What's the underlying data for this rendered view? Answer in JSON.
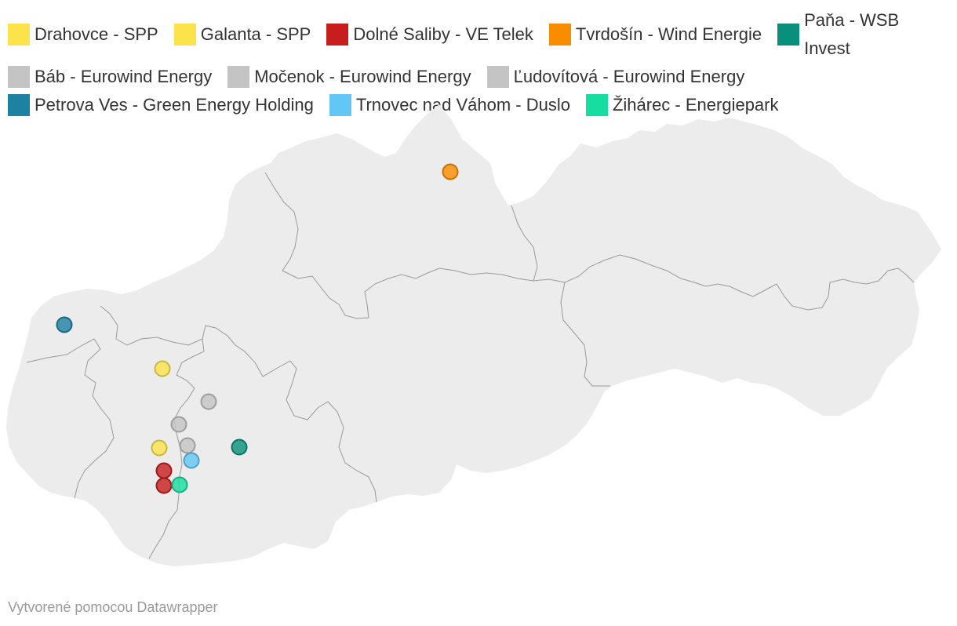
{
  "legend": [
    {
      "id": "drahovce",
      "label": "Drahovce - SPP",
      "color": "#fde34b"
    },
    {
      "id": "galanta",
      "label": "Galanta - SPP",
      "color": "#fde34b"
    },
    {
      "id": "dolne-saliby",
      "label": "Dolné Saliby - VE Telek",
      "color": "#c71e1d"
    },
    {
      "id": "tvrdosin",
      "label": "Tvrdošín - Wind Energie",
      "color": "#fa8c00"
    },
    {
      "id": "pana",
      "label": "Paňa - WSB Invest",
      "color": "#09907c"
    },
    {
      "id": "bab",
      "label": "Báb - Eurowind Energy",
      "color": "#c4c4c4"
    },
    {
      "id": "mocenok",
      "label": "Močenok - Eurowind Energy",
      "color": "#c4c4c4"
    },
    {
      "id": "ludovitova",
      "label": "Ľudovítová - Eurowind Energy",
      "color": "#c4c4c4"
    },
    {
      "id": "petrova-ves",
      "label": "Petrova Ves - Green Energy Holding",
      "color": "#1d81a2"
    },
    {
      "id": "trnovec",
      "label": "Trnovec nad Váhom - Duslo",
      "color": "#62c7f5"
    },
    {
      "id": "ziharec",
      "label": "Žihárec - Energiepark",
      "color": "#15dea0"
    }
  ],
  "map": {
    "land_color": "#ececec",
    "border_color": "#999999"
  },
  "credit": "Vytvorené pomocou Datawrapper"
}
